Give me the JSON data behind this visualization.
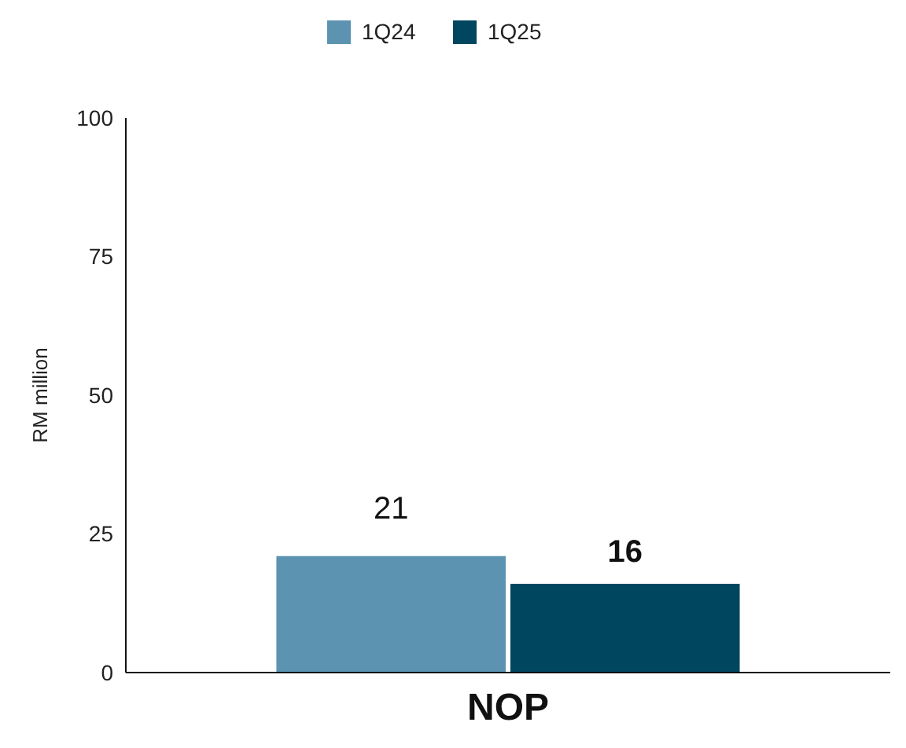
{
  "chart_data": {
    "type": "bar",
    "ylabel": "RM million",
    "categories": [
      "NOP"
    ],
    "series": [
      {
        "name": "1Q24",
        "color": "#5b93b0",
        "values": [
          21
        ]
      },
      {
        "name": "1Q25",
        "color": "#00465f",
        "values": [
          16
        ]
      }
    ],
    "ylim": [
      0,
      100
    ],
    "yticks": [
      0,
      25,
      50,
      75,
      100
    ],
    "grid": false,
    "legend": "top",
    "data_labels": true
  }
}
